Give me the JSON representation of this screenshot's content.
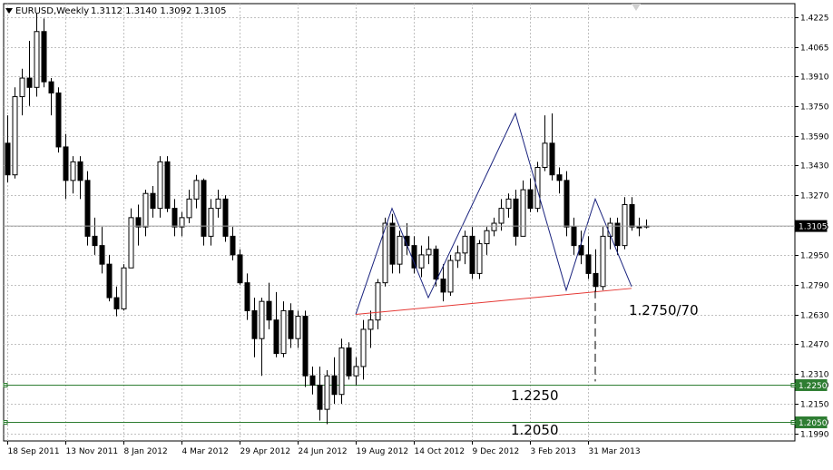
{
  "header": {
    "symbol": "EURUSD,Weekly",
    "ohlc": "1.3112 1.3140 1.3092 1.3105"
  },
  "colors": {
    "background": "#ffffff",
    "grid": "#c0c0c0",
    "bull": "#ffffff",
    "bear": "#000000",
    "wave": "#1a237e",
    "neckline": "#e53935",
    "level_line": "#2e7d32",
    "price_label_bg": "#000000",
    "price_label_text": "#ffffff"
  },
  "current_price": "1.3105",
  "levels": [
    "1.2250",
    "1.2050"
  ],
  "annotations": {
    "target": "1.2750/70",
    "level_1": "1.2250",
    "level_2": "1.2050"
  },
  "chart_data": {
    "type": "candlestick",
    "title": "EURUSD,Weekly",
    "ylim": [
      1.195,
      1.43
    ],
    "grid": true,
    "y_ticks": [
      "1.4225",
      "1.4065",
      "1.3910",
      "1.3750",
      "1.3590",
      "1.3430",
      "1.3270",
      "1.3105",
      "1.2950",
      "1.2790",
      "1.2630",
      "1.2470",
      "1.2310",
      "1.2250",
      "1.2150",
      "1.2050",
      "1.1990"
    ],
    "x_ticks": [
      {
        "label": "18 Sep 2011",
        "bar": 0
      },
      {
        "label": "13 Nov 2011",
        "bar": 8
      },
      {
        "label": "8 Jan 2012",
        "bar": 16
      },
      {
        "label": "4 Mar 2012",
        "bar": 24
      },
      {
        "label": "29 Apr 2012",
        "bar": 32
      },
      {
        "label": "24 Jun 2012",
        "bar": 40
      },
      {
        "label": "19 Aug 2012",
        "bar": 48
      },
      {
        "label": "14 Oct 2012",
        "bar": 56
      },
      {
        "label": "9 Dec 2012",
        "bar": 64
      },
      {
        "label": "3 Feb 2013",
        "bar": 72
      },
      {
        "label": "31 Mar 2013",
        "bar": 80
      }
    ],
    "candles": [
      [
        1.355,
        1.37,
        1.334,
        1.338
      ],
      [
        1.338,
        1.385,
        1.336,
        1.38
      ],
      [
        1.38,
        1.395,
        1.37,
        1.39
      ],
      [
        1.39,
        1.41,
        1.375,
        1.385
      ],
      [
        1.385,
        1.425,
        1.38,
        1.415
      ],
      [
        1.415,
        1.422,
        1.385,
        1.388
      ],
      [
        1.388,
        1.39,
        1.37,
        1.382
      ],
      [
        1.382,
        1.385,
        1.35,
        1.353
      ],
      [
        1.353,
        1.36,
        1.325,
        1.335
      ],
      [
        1.335,
        1.348,
        1.328,
        1.345
      ],
      [
        1.345,
        1.348,
        1.325,
        1.335
      ],
      [
        1.335,
        1.34,
        1.3,
        1.305
      ],
      [
        1.305,
        1.315,
        1.295,
        1.3
      ],
      [
        1.3,
        1.31,
        1.285,
        1.29
      ],
      [
        1.29,
        1.295,
        1.27,
        1.272
      ],
      [
        1.272,
        1.278,
        1.262,
        1.266
      ],
      [
        1.266,
        1.29,
        1.265,
        1.288
      ],
      [
        1.288,
        1.32,
        1.288,
        1.315
      ],
      [
        1.315,
        1.322,
        1.3,
        1.31
      ],
      [
        1.31,
        1.33,
        1.305,
        1.328
      ],
      [
        1.328,
        1.332,
        1.315,
        1.32
      ],
      [
        1.32,
        1.348,
        1.315,
        1.345
      ],
      [
        1.345,
        1.348,
        1.318,
        1.32
      ],
      [
        1.32,
        1.325,
        1.305,
        1.31
      ],
      [
        1.31,
        1.318,
        1.305,
        1.315
      ],
      [
        1.315,
        1.33,
        1.312,
        1.325
      ],
      [
        1.325,
        1.338,
        1.32,
        1.335
      ],
      [
        1.335,
        1.336,
        1.3,
        1.305
      ],
      [
        1.305,
        1.325,
        1.3,
        1.32
      ],
      [
        1.32,
        1.33,
        1.315,
        1.325
      ],
      [
        1.325,
        1.327,
        1.302,
        1.305
      ],
      [
        1.305,
        1.31,
        1.292,
        1.295
      ],
      [
        1.295,
        1.298,
        1.279,
        1.28
      ],
      [
        1.28,
        1.285,
        1.26,
        1.265
      ],
      [
        1.265,
        1.272,
        1.24,
        1.25
      ],
      [
        1.25,
        1.272,
        1.23,
        1.27
      ],
      [
        1.27,
        1.28,
        1.255,
        1.26
      ],
      [
        1.26,
        1.275,
        1.24,
        1.242
      ],
      [
        1.242,
        1.27,
        1.24,
        1.265
      ],
      [
        1.265,
        1.269,
        1.245,
        1.25
      ],
      [
        1.25,
        1.265,
        1.245,
        1.262
      ],
      [
        1.262,
        1.265,
        1.224,
        1.23
      ],
      [
        1.23,
        1.235,
        1.22,
        1.225
      ],
      [
        1.225,
        1.235,
        1.206,
        1.212
      ],
      [
        1.212,
        1.233,
        1.204,
        1.23
      ],
      [
        1.23,
        1.24,
        1.215,
        1.22
      ],
      [
        1.22,
        1.25,
        1.215,
        1.245
      ],
      [
        1.245,
        1.248,
        1.228,
        1.23
      ],
      [
        1.23,
        1.24,
        1.225,
        1.235
      ],
      [
        1.235,
        1.26,
        1.228,
        1.255
      ],
      [
        1.255,
        1.265,
        1.245,
        1.26
      ],
      [
        1.26,
        1.282,
        1.255,
        1.28
      ],
      [
        1.28,
        1.315,
        1.278,
        1.312
      ],
      [
        1.312,
        1.317,
        1.285,
        1.29
      ],
      [
        1.29,
        1.308,
        1.285,
        1.305
      ],
      [
        1.305,
        1.312,
        1.295,
        1.3
      ],
      [
        1.3,
        1.305,
        1.285,
        1.288
      ],
      [
        1.288,
        1.3,
        1.283,
        1.295
      ],
      [
        1.295,
        1.305,
        1.29,
        1.298
      ],
      [
        1.298,
        1.3,
        1.278,
        1.282
      ],
      [
        1.282,
        1.29,
        1.27,
        1.275
      ],
      [
        1.275,
        1.295,
        1.273,
        1.292
      ],
      [
        1.292,
        1.3,
        1.288,
        1.296
      ],
      [
        1.296,
        1.308,
        1.29,
        1.305
      ],
      [
        1.305,
        1.31,
        1.282,
        1.285
      ],
      [
        1.285,
        1.303,
        1.282,
        1.301
      ],
      [
        1.301,
        1.31,
        1.295,
        1.308
      ],
      [
        1.308,
        1.315,
        1.305,
        1.312
      ],
      [
        1.312,
        1.325,
        1.308,
        1.32
      ],
      [
        1.32,
        1.328,
        1.315,
        1.325
      ],
      [
        1.325,
        1.33,
        1.3,
        1.305
      ],
      [
        1.305,
        1.335,
        1.305,
        1.33
      ],
      [
        1.33,
        1.336,
        1.318,
        1.32
      ],
      [
        1.32,
        1.345,
        1.318,
        1.342
      ],
      [
        1.342,
        1.37,
        1.34,
        1.355
      ],
      [
        1.355,
        1.371,
        1.335,
        1.338
      ],
      [
        1.338,
        1.342,
        1.328,
        1.335
      ],
      [
        1.335,
        1.34,
        1.305,
        1.31
      ],
      [
        1.31,
        1.315,
        1.295,
        1.3
      ],
      [
        1.3,
        1.308,
        1.29,
        1.295
      ],
      [
        1.295,
        1.305,
        1.282,
        1.285
      ],
      [
        1.285,
        1.298,
        1.275,
        1.278
      ],
      [
        1.278,
        1.31,
        1.276,
        1.305
      ],
      [
        1.305,
        1.315,
        1.298,
        1.312
      ],
      [
        1.312,
        1.315,
        1.295,
        1.3
      ],
      [
        1.3,
        1.326,
        1.298,
        1.322
      ],
      [
        1.322,
        1.326,
        1.308,
        1.31
      ],
      [
        1.31,
        1.315,
        1.305,
        1.31
      ],
      [
        1.31,
        1.314,
        1.3092,
        1.3105
      ]
    ],
    "wave_path": [
      [
        48,
        1.263
      ],
      [
        53,
        1.32
      ],
      [
        58,
        1.272
      ],
      [
        70,
        1.371
      ],
      [
        77,
        1.276
      ],
      [
        81,
        1.325
      ],
      [
        86,
        1.278
      ]
    ],
    "neckline": [
      [
        48,
        1.263
      ],
      [
        86,
        1.277
      ]
    ],
    "projection": {
      "bar": 81,
      "from": 1.276,
      "to": 1.227
    },
    "horizontal_levels": [
      1.225,
      1.205
    ]
  }
}
